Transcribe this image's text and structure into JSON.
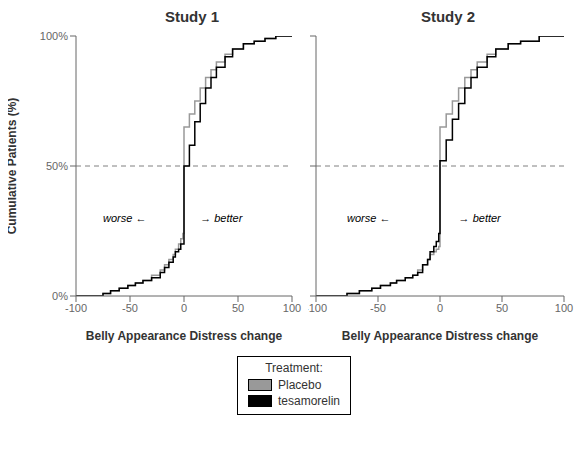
{
  "chart_data": [
    {
      "type": "step",
      "title": "Study 1",
      "x_label": "Belly Appearance Distress change",
      "y_label": "Cumulative Patients (%)",
      "xlim": [
        -100,
        100
      ],
      "ylim": [
        0,
        1
      ],
      "xticks": [
        -100,
        -50,
        0,
        50,
        100
      ],
      "yticks": [
        {
          "value": 0,
          "label": "0%"
        },
        {
          "value": 0.5,
          "label": "50%"
        },
        {
          "value": 1.0,
          "label": "100%"
        }
      ],
      "hlines": [
        {
          "y": 0.5,
          "line_style": "dashed",
          "color": "#808080"
        }
      ],
      "annotations": [
        {
          "text": "worse ←",
          "x": -75,
          "y": 0.3
        },
        {
          "text": "→ better",
          "x": 15,
          "y": 0.3
        }
      ],
      "series": [
        {
          "name": "Placebo",
          "color": "#999999",
          "x": [
            -100,
            -75,
            -68,
            -60,
            -52,
            -45,
            -38,
            -30,
            -22,
            -18,
            -14,
            -10,
            -8,
            -5,
            -3,
            -1,
            0,
            5,
            10,
            15,
            20,
            25,
            30,
            38,
            45,
            55,
            65,
            75,
            85,
            100
          ],
          "values": [
            0.0,
            0.01,
            0.02,
            0.03,
            0.04,
            0.05,
            0.06,
            0.08,
            0.1,
            0.12,
            0.14,
            0.16,
            0.18,
            0.2,
            0.22,
            0.24,
            0.65,
            0.7,
            0.75,
            0.8,
            0.84,
            0.87,
            0.9,
            0.93,
            0.95,
            0.97,
            0.98,
            0.99,
            1.0,
            1.0
          ]
        },
        {
          "name": "tesamorelin",
          "color": "#000000",
          "x": [
            -100,
            -75,
            -68,
            -60,
            -52,
            -45,
            -38,
            -30,
            -22,
            -18,
            -14,
            -10,
            -8,
            -5,
            -3,
            0,
            5,
            10,
            15,
            20,
            25,
            30,
            38,
            45,
            55,
            65,
            75,
            85,
            100
          ],
          "values": [
            0.0,
            0.01,
            0.02,
            0.03,
            0.04,
            0.05,
            0.06,
            0.07,
            0.09,
            0.11,
            0.13,
            0.15,
            0.17,
            0.18,
            0.2,
            0.5,
            0.58,
            0.67,
            0.74,
            0.8,
            0.84,
            0.88,
            0.92,
            0.95,
            0.97,
            0.98,
            0.99,
            1.0,
            1.0
          ]
        }
      ],
      "legend_title": "Treatment:"
    },
    {
      "type": "step",
      "title": "Study 2",
      "x_label": "Belly Appearance Distress change",
      "xlim": [
        -100,
        100
      ],
      "ylim": [
        0,
        1
      ],
      "xticks": [
        -100,
        -50,
        0,
        50,
        100
      ],
      "yticks": [
        0,
        0.5,
        1.0
      ],
      "tick_labels": "x",
      "hlines": [
        {
          "y": 0.5,
          "line_style": "dashed",
          "color": "#808080"
        }
      ],
      "annotations": [
        {
          "text": "worse ←",
          "x": -75,
          "y": 0.3
        },
        {
          "text": "→ better",
          "x": 15,
          "y": 0.3
        }
      ],
      "series": [
        {
          "name": "Placebo",
          "color": "#999999",
          "x": [
            -100,
            -75,
            -65,
            -55,
            -48,
            -40,
            -35,
            -28,
            -22,
            -18,
            -14,
            -10,
            -8,
            -5,
            -3,
            -1,
            0,
            5,
            10,
            15,
            20,
            25,
            30,
            38,
            45,
            55,
            65,
            80,
            100
          ],
          "values": [
            0.0,
            0.01,
            0.02,
            0.03,
            0.04,
            0.05,
            0.06,
            0.07,
            0.08,
            0.1,
            0.12,
            0.14,
            0.16,
            0.17,
            0.18,
            0.19,
            0.65,
            0.7,
            0.75,
            0.8,
            0.84,
            0.87,
            0.9,
            0.93,
            0.95,
            0.97,
            0.98,
            1.0,
            1.0
          ]
        },
        {
          "name": "tesamorelin",
          "color": "#000000",
          "x": [
            -100,
            -75,
            -65,
            -55,
            -48,
            -40,
            -35,
            -28,
            -22,
            -18,
            -14,
            -10,
            -8,
            -5,
            -3,
            -1,
            0,
            5,
            10,
            15,
            20,
            25,
            30,
            38,
            45,
            55,
            65,
            80,
            100
          ],
          "values": [
            0.0,
            0.01,
            0.02,
            0.03,
            0.04,
            0.05,
            0.06,
            0.07,
            0.08,
            0.09,
            0.12,
            0.14,
            0.17,
            0.19,
            0.21,
            0.24,
            0.52,
            0.6,
            0.68,
            0.74,
            0.8,
            0.84,
            0.88,
            0.92,
            0.95,
            0.97,
            0.98,
            1.0,
            1.0
          ]
        }
      ]
    }
  ]
}
